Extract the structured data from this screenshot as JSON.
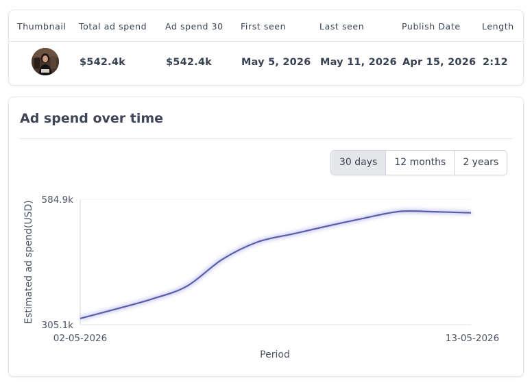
{
  "table": {
    "headers": {
      "thumbnail": "Thumbnail",
      "total_spend": "Total ad spend",
      "spend_30": "Ad spend 30",
      "first_seen": "First seen",
      "last_seen": "Last seen",
      "publish_date": "Publish Date",
      "length": "Length"
    },
    "row": {
      "total_spend": "$542.4k",
      "spend_30": "$542.4k",
      "first_seen": "May 5, 2026",
      "last_seen": "May 11, 2026",
      "publish_date": "Apr 15, 2026",
      "length": "2:12"
    }
  },
  "chart_section": {
    "title": "Ad spend over time",
    "ranges": [
      "30 days",
      "12 months",
      "2 years"
    ],
    "selected_range": "30 days"
  },
  "chart_data": {
    "type": "line",
    "title": "Ad spend over time",
    "xlabel": "Period",
    "ylabel": "Estimated ad spend(USD)",
    "x_tick_labels": [
      "02-05-2026",
      "13-05-2026"
    ],
    "y_tick_labels": [
      "305.1k",
      "584.9k"
    ],
    "ylim": [
      305.1,
      584.9
    ],
    "x": [
      "02-05-2026",
      "03-05-2026",
      "04-05-2026",
      "05-05-2026",
      "06-05-2026",
      "07-05-2026",
      "08-05-2026",
      "09-05-2026",
      "10-05-2026",
      "11-05-2026",
      "12-05-2026",
      "13-05-2026"
    ],
    "series": [
      {
        "values": [
          319,
          340,
          362,
          391,
          451,
          490,
          508,
          526,
          543,
          558,
          557,
          555
        ],
        "color": "#5b5ea6"
      }
    ],
    "grid": false,
    "y_unit": "k USD"
  }
}
